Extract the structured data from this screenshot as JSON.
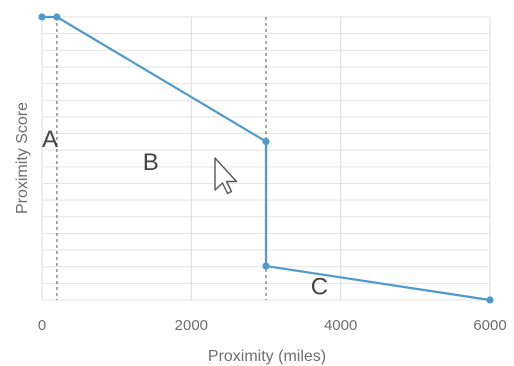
{
  "chart_data": {
    "type": "line",
    "title": "",
    "xlabel": "Proximity (miles)",
    "ylabel": "Proximity Score",
    "xlim": [
      0,
      6000
    ],
    "ylim": [
      0,
      1
    ],
    "x_ticks": [
      0,
      2000,
      4000,
      6000
    ],
    "x_tick_labels": [
      "0",
      "2000",
      "4000",
      "6000"
    ],
    "y_tick_labels_visible": false,
    "grid": true,
    "legend": "none",
    "series": [
      {
        "color": "#4f9ac8",
        "points": [
          {
            "x": 0,
            "y": 1.0
          },
          {
            "x": 200,
            "y": 1.0
          },
          {
            "x": 3000,
            "y": 0.56
          },
          {
            "x": 3000,
            "y": 0.12
          },
          {
            "x": 6000,
            "y": 0.0
          }
        ]
      }
    ],
    "reference_lines": [
      {
        "x": 200,
        "style": "dashed"
      },
      {
        "x": 3000,
        "style": "dashed"
      }
    ],
    "annotations": [
      {
        "text": "A",
        "x": 0,
        "y": 0.54
      },
      {
        "text": "B",
        "x": 1350,
        "y": 0.46
      },
      {
        "text": "C",
        "x": 3600,
        "y": 0.02
      }
    ]
  }
}
